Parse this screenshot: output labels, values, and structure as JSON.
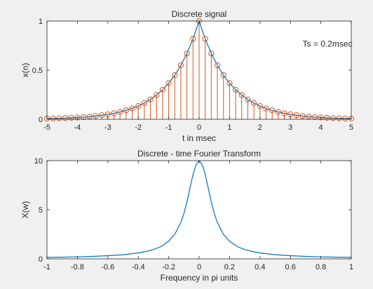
{
  "figure": {
    "background": "#f0f0f0",
    "axes_background": "#ffffff"
  },
  "chart_data": [
    {
      "type": "line",
      "overlay": "stem",
      "title": "Discrete signal",
      "xlabel": "t in msec",
      "ylabel": "x(n)",
      "annotation": "Ts = 0.2msec",
      "xlim": [
        -5,
        5
      ],
      "ylim": [
        0,
        1
      ],
      "xticks": [
        "-5",
        "-4",
        "-3",
        "-2",
        "-1",
        "0",
        "1",
        "2",
        "3",
        "4",
        "5"
      ],
      "yticks": [
        "0",
        "0.5",
        "1"
      ],
      "x_tick_values": [
        -5,
        -4,
        -3,
        -2,
        -1,
        0,
        1,
        2,
        3,
        4,
        5
      ],
      "y_tick_values": [
        0,
        0.5,
        1
      ],
      "continuous_color": "#0072bd",
      "stem_color": "#d95319",
      "sample_x": [
        -5,
        -4.8,
        -4.6,
        -4.4,
        -4.2,
        -4,
        -3.8,
        -3.6,
        -3.4,
        -3.2,
        -3,
        -2.8,
        -2.6,
        -2.4,
        -2.2,
        -2,
        -1.8,
        -1.6,
        -1.4,
        -1.2,
        -1,
        -0.8,
        -0.6,
        -0.4,
        -0.2,
        0,
        0.2,
        0.4,
        0.6,
        0.8,
        1,
        1.2,
        1.4,
        1.6,
        1.8,
        2,
        2.2,
        2.4,
        2.6,
        2.8,
        3,
        3.2,
        3.4,
        3.6,
        3.8,
        4,
        4.2,
        4.4,
        4.6,
        4.8,
        5
      ],
      "sample_y": [
        0.007,
        0.008,
        0.01,
        0.012,
        0.015,
        0.018,
        0.022,
        0.027,
        0.033,
        0.041,
        0.05,
        0.061,
        0.074,
        0.091,
        0.111,
        0.135,
        0.165,
        0.202,
        0.247,
        0.301,
        0.368,
        0.449,
        0.549,
        0.67,
        0.819,
        1.0,
        0.819,
        0.67,
        0.549,
        0.449,
        0.368,
        0.301,
        0.247,
        0.202,
        0.165,
        0.135,
        0.111,
        0.091,
        0.074,
        0.061,
        0.05,
        0.041,
        0.033,
        0.027,
        0.022,
        0.018,
        0.015,
        0.012,
        0.01,
        0.008,
        0.007
      ]
    },
    {
      "type": "line",
      "title": "Discrete - time Fourier Transform",
      "xlabel": "Frequency in pi units",
      "ylabel": "X(w)",
      "xlim": [
        -1,
        1
      ],
      "ylim": [
        0,
        10
      ],
      "xticks": [
        "-1",
        "-0.8",
        "-0.6",
        "-0.4",
        "-0.2",
        "0",
        "0.2",
        "0.4",
        "0.6",
        "0.8",
        "1"
      ],
      "yticks": [
        "0",
        "5",
        "10"
      ],
      "x_tick_values": [
        -1,
        -0.8,
        -0.6,
        -0.4,
        -0.2,
        0,
        0.2,
        0.4,
        0.6,
        0.8,
        1
      ],
      "y_tick_values": [
        0,
        5,
        10
      ],
      "line_color": "#0072bd",
      "x": [
        -1,
        -0.9,
        -0.8,
        -0.7,
        -0.6,
        -0.5,
        -0.4,
        -0.35,
        -0.3,
        -0.25,
        -0.2,
        -0.16,
        -0.12,
        -0.1,
        -0.08,
        -0.06,
        -0.04,
        -0.02,
        0,
        0.02,
        0.04,
        0.06,
        0.08,
        0.1,
        0.12,
        0.16,
        0.2,
        0.25,
        0.3,
        0.35,
        0.4,
        0.5,
        0.6,
        0.7,
        0.8,
        0.9,
        1
      ],
      "y": [
        0.15,
        0.17,
        0.2,
        0.25,
        0.32,
        0.42,
        0.6,
        0.75,
        0.95,
        1.25,
        1.8,
        2.5,
        3.7,
        4.6,
        5.8,
        7.2,
        8.6,
        9.6,
        10.0,
        9.6,
        8.6,
        7.2,
        5.8,
        4.6,
        3.7,
        2.5,
        1.8,
        1.25,
        0.95,
        0.75,
        0.6,
        0.42,
        0.32,
        0.25,
        0.2,
        0.17,
        0.15
      ]
    }
  ]
}
